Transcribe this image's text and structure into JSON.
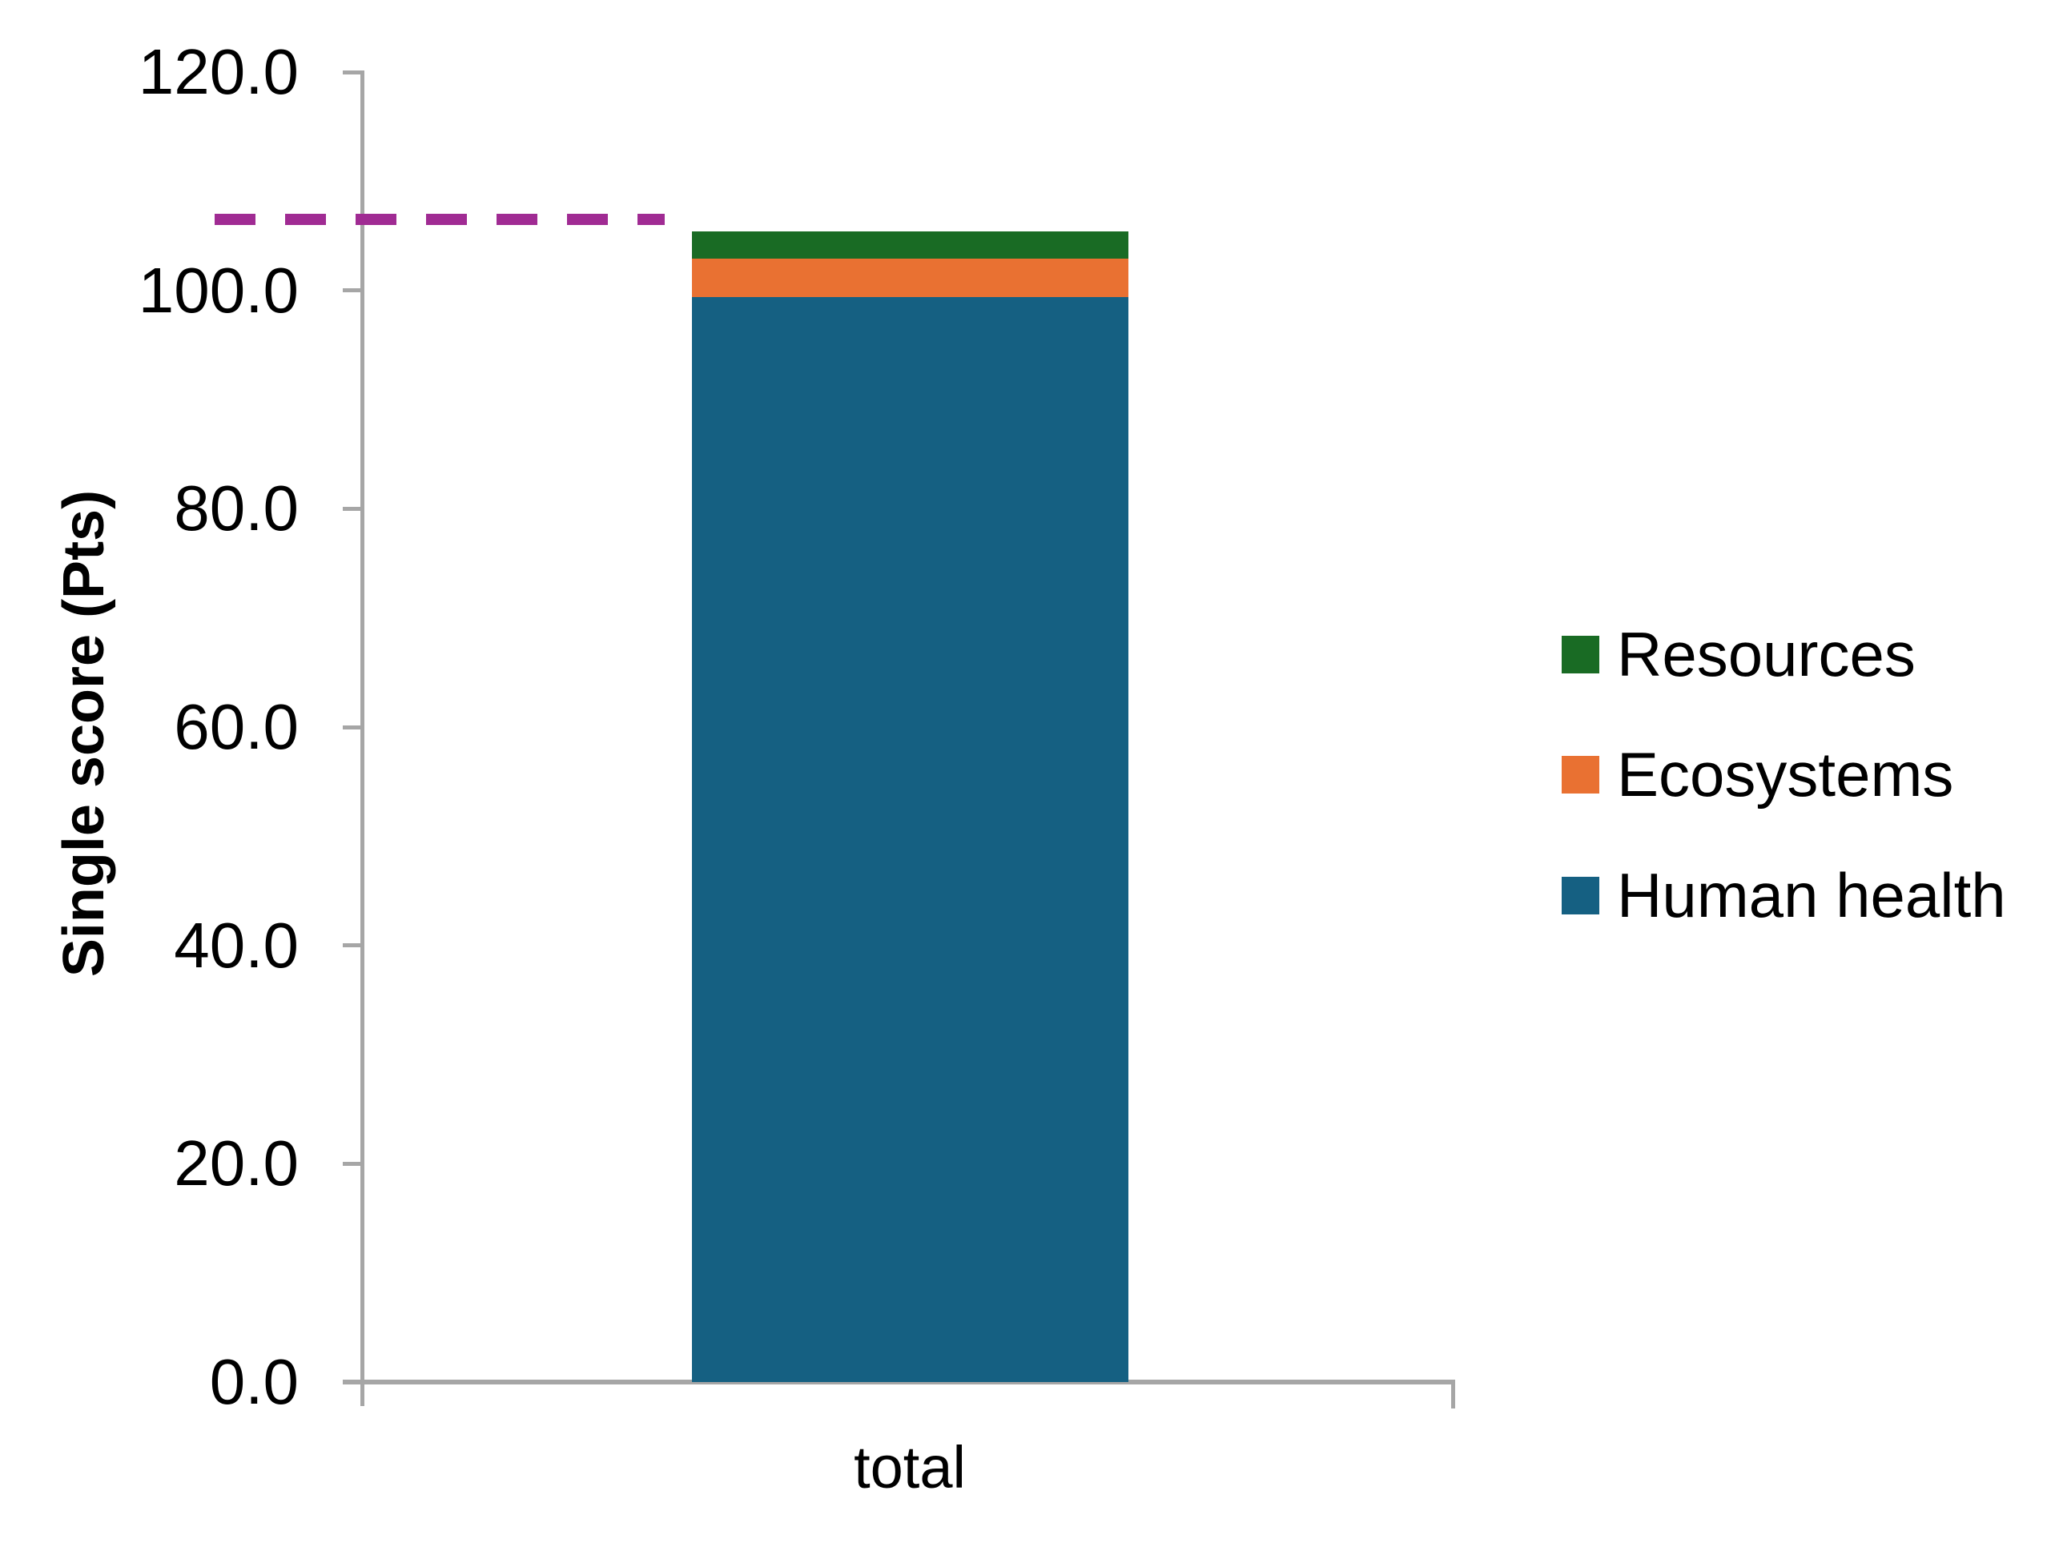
{
  "chart_data": {
    "type": "bar",
    "stacked": true,
    "title": "",
    "categories": [
      "total"
    ],
    "series": [
      {
        "name": "Human health",
        "values": [
          99.4
        ],
        "color": "#156082"
      },
      {
        "name": "Ecosystems",
        "values": [
          3.5
        ],
        "color": "#E97132"
      },
      {
        "name": "Resources",
        "values": [
          2.5
        ],
        "color": "#196B24"
      }
    ],
    "stack_total": 105.4,
    "reference_line": {
      "value": 106.5,
      "style": "dashed",
      "color": "#A02B93"
    },
    "ylabel": "Single score (Pts)",
    "xlabel": "",
    "ylim": [
      0,
      120
    ],
    "ytick_values": [
      120,
      100,
      80,
      60,
      40,
      20,
      0
    ],
    "yticks": [
      "120.0",
      "100.0",
      "80.0",
      "60.0",
      "40.0",
      "20.0",
      "0.0"
    ],
    "grid": false,
    "legend": {
      "position": "right",
      "entries": [
        "Resources",
        "Ecosystems",
        "Human health"
      ]
    },
    "axis_color": "#A6A6A6",
    "text_color": "#000000"
  }
}
